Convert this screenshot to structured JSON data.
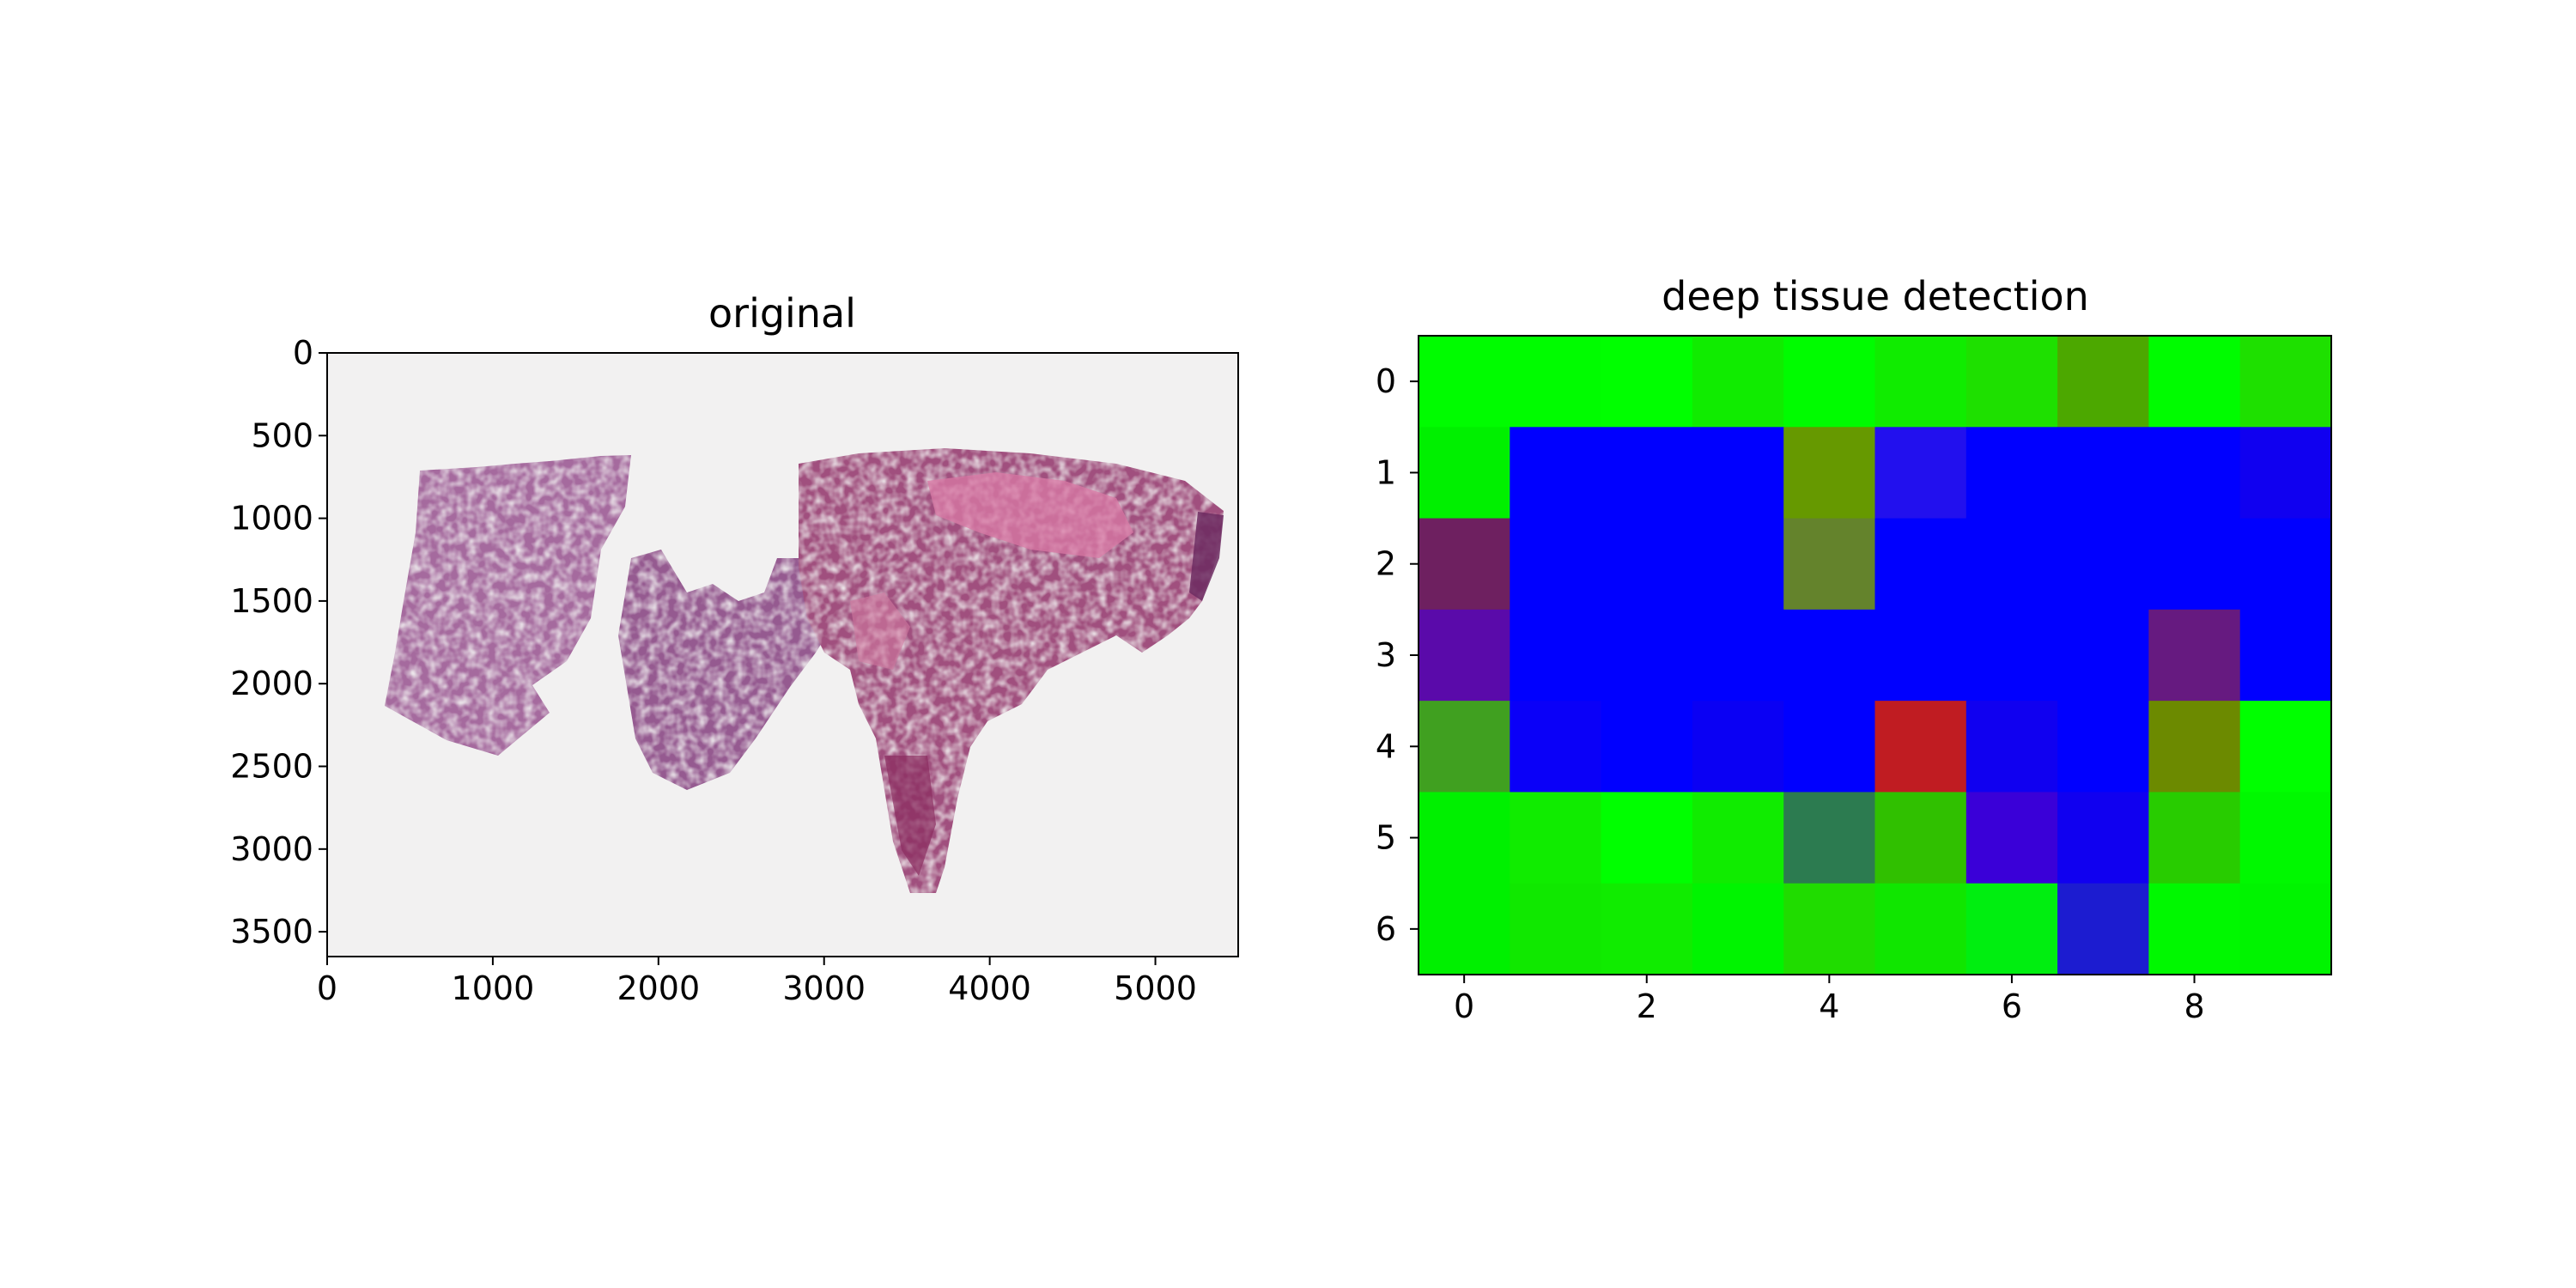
{
  "chart_data": [
    {
      "type": "image",
      "title": "original",
      "x_ticks": [
        0,
        1000,
        2000,
        3000,
        4000,
        5000
      ],
      "y_ticks": [
        0,
        500,
        1000,
        1500,
        2000,
        2500,
        3000,
        3500
      ],
      "xlim": [
        0,
        5500
      ],
      "ylim": [
        3650,
        0
      ],
      "image_content": "H&E stained tissue section on light gray background"
    },
    {
      "type": "heatmap",
      "title": "deep tissue detection",
      "x_ticks": [
        0,
        2,
        4,
        6,
        8
      ],
      "y_ticks": [
        0,
        1,
        2,
        3,
        4,
        5,
        6
      ],
      "rows": 7,
      "cols": 10,
      "colors": [
        [
          "#00fc00",
          "#00fc00",
          "#00ff00",
          "#10ec00",
          "#00fc00",
          "#10ec00",
          "#1ee000",
          "#4ca800",
          "#00fc00",
          "#1ee000"
        ],
        [
          "#00f000",
          "#0000ff",
          "#0000ff",
          "#0000ff",
          "#669900",
          "#2210ee",
          "#0000ff",
          "#0000ff",
          "#0000ff",
          "#1000f0"
        ],
        [
          "#6e2060",
          "#0000ff",
          "#0000ff",
          "#0000ff",
          "#64832c",
          "#0000ff",
          "#0000ff",
          "#0000ff",
          "#0000ff",
          "#0000ff"
        ],
        [
          "#5a0aaa",
          "#0000ff",
          "#0000ff",
          "#0000ff",
          "#0000ff",
          "#0000ff",
          "#0000ff",
          "#0000ff",
          "#661a80",
          "#0000ff"
        ],
        [
          "#40a020",
          "#0a00f8",
          "#0000ff",
          "#0a00f4",
          "#0000ff",
          "#c01c22",
          "#1000f0",
          "#0000ff",
          "#6c8a00",
          "#00ff00"
        ],
        [
          "#00f000",
          "#10ec00",
          "#00ff00",
          "#10ec00",
          "#2c7b50",
          "#30c000",
          "#3a00d8",
          "#1000f0",
          "#28cc00",
          "#00f800"
        ],
        [
          "#00f000",
          "#10e800",
          "#10ec00",
          "#00f400",
          "#20dc00",
          "#10e600",
          "#00ee10",
          "#1c1cd0",
          "#00f800",
          "#00f400"
        ]
      ]
    }
  ]
}
